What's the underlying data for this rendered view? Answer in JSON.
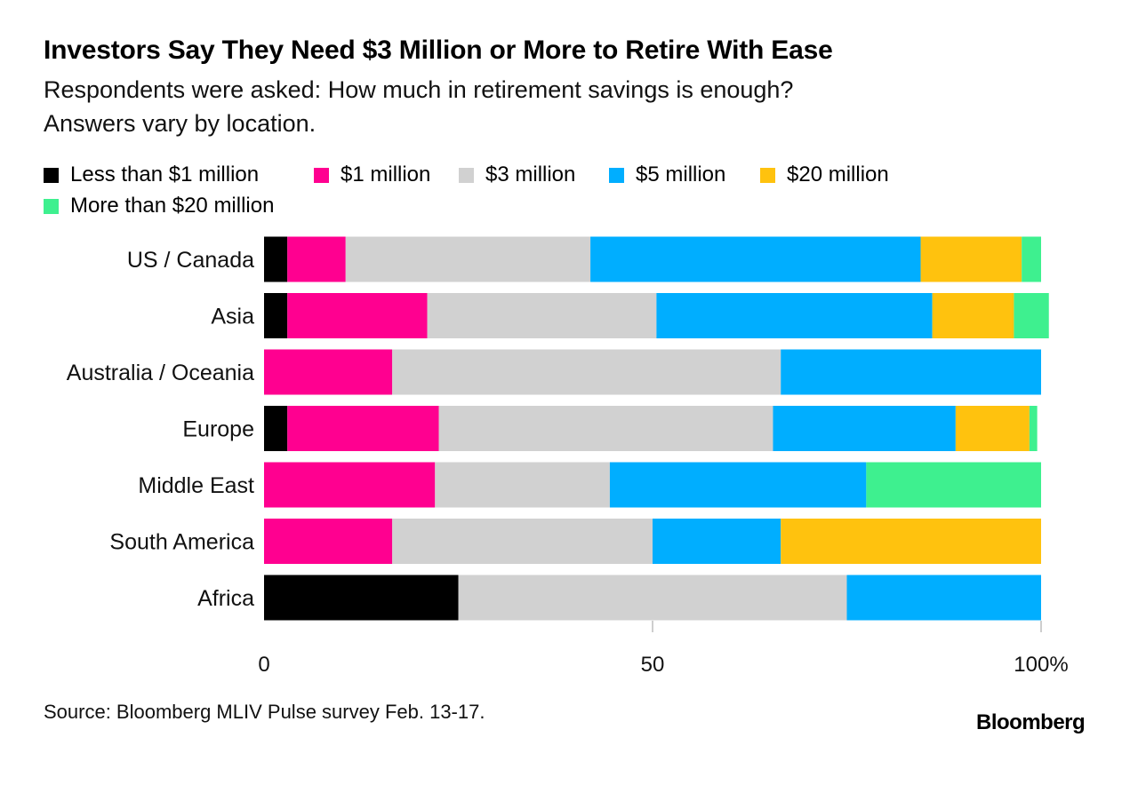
{
  "title": "Investors Say They Need $3 Million or More to Retire With Ease",
  "subtitle_lines": [
    "Respondents were asked: How much in retirement savings is enough?",
    "Answers vary by location."
  ],
  "source": "Source: Bloomberg MLIV Pulse survey Feb. 13-17.",
  "brand": "Bloomberg",
  "colors": {
    "background": "#ffffff",
    "text": "#000000",
    "axis": "#bdbdbd"
  },
  "chart_data": {
    "type": "bar",
    "orientation": "horizontal",
    "stacked": true,
    "title": "Investors Say They Need $3 Million or More to Retire With Ease",
    "categories": [
      "US / Canada",
      "Asia",
      "Australia / Oceania",
      "Europe",
      "Middle East",
      "South America",
      "Africa"
    ],
    "series": [
      {
        "name": "Less than $1 million",
        "color": "#000000",
        "values": [
          3,
          3,
          0,
          3,
          0,
          0,
          25
        ]
      },
      {
        "name": "$1 million",
        "color": "#ff0090",
        "values": [
          7.5,
          18,
          16.5,
          19.5,
          22,
          16.5,
          0
        ]
      },
      {
        "name": "$3 million",
        "color": "#d1d1d1",
        "values": [
          31.5,
          29.5,
          50,
          43,
          22.5,
          33.5,
          50
        ]
      },
      {
        "name": "$5 million",
        "color": "#00aeff",
        "values": [
          42.5,
          35.5,
          33.5,
          23.5,
          33,
          16.5,
          25
        ]
      },
      {
        "name": "$20 million",
        "color": "#ffc20e",
        "values": [
          13,
          10.5,
          0,
          9.5,
          0,
          33.5,
          0
        ]
      },
      {
        "name": "More than $20 million",
        "color": "#3ef08f",
        "values": [
          2.5,
          4.5,
          0,
          1,
          22.5,
          0,
          0
        ]
      }
    ],
    "xlim": [
      0,
      100
    ],
    "x_ticks": [
      "0",
      "50",
      "100%"
    ],
    "x_tick_values": [
      0,
      50,
      100
    ],
    "xlabel": "",
    "ylabel": "",
    "grid": false,
    "legend_position": "top-left"
  }
}
